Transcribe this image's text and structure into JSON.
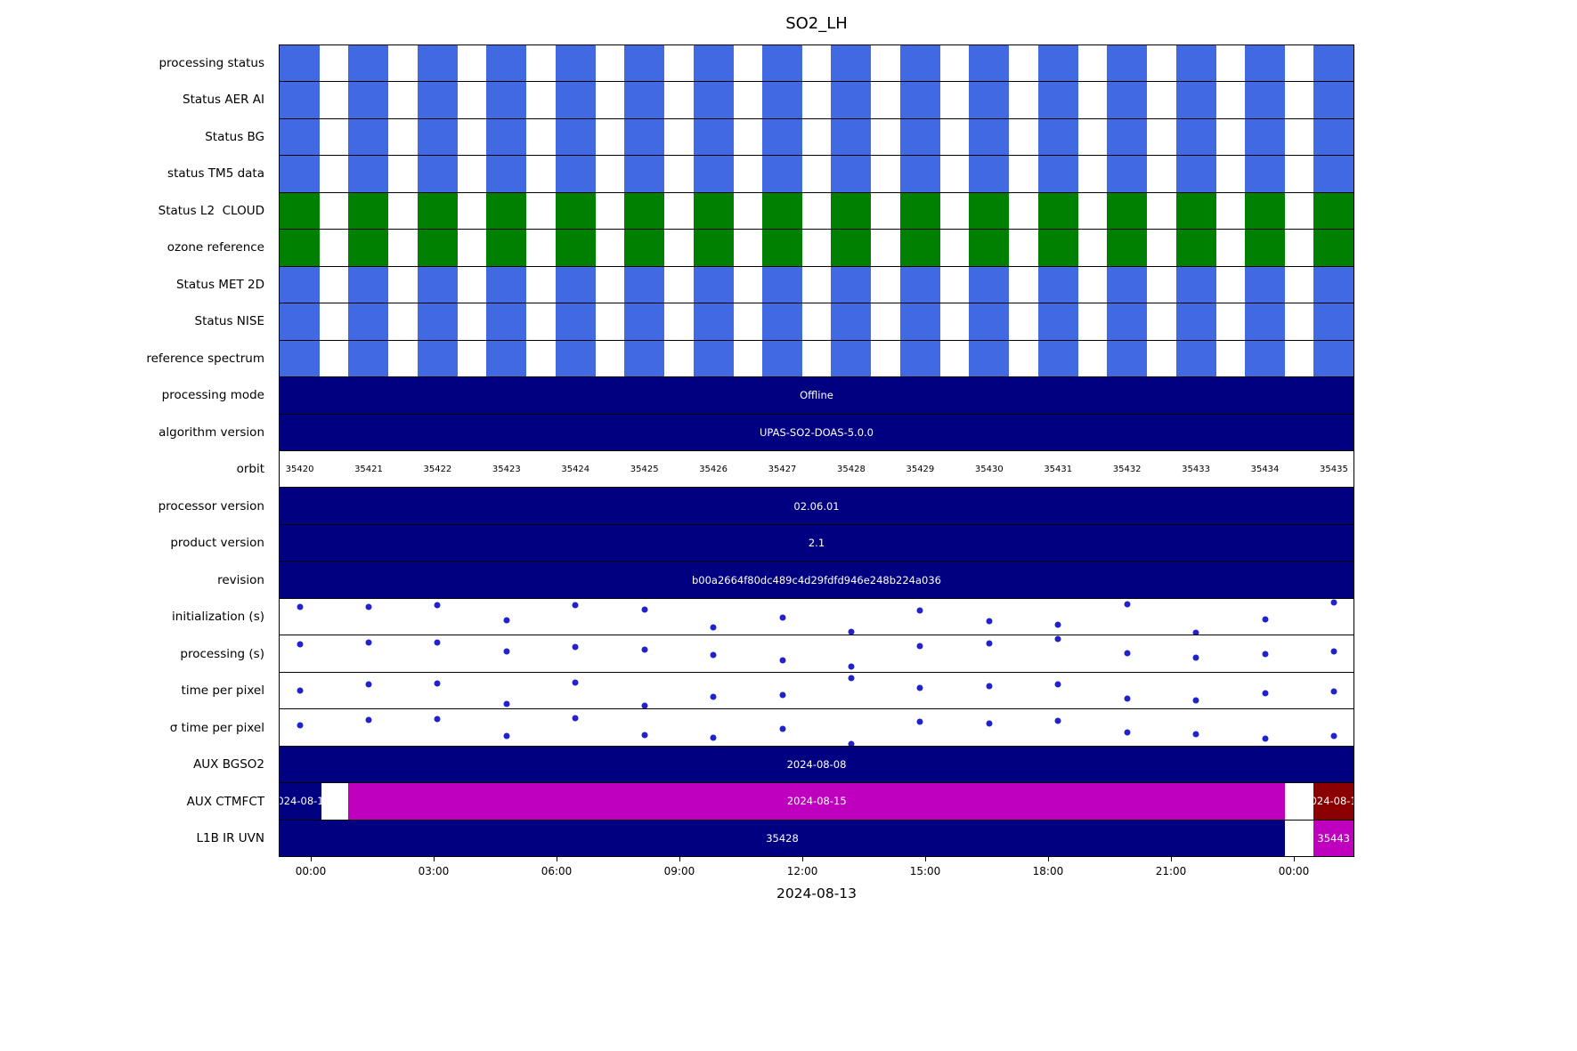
{
  "title": "SO2_LH",
  "xlabel": "2024-08-13",
  "chart_data": {
    "type": "table",
    "title": "SO2_LH",
    "xlabel": "2024-08-13",
    "colors": {
      "blue": "#4169E1",
      "green": "#008000",
      "navy": "#000080",
      "magenta": "#BF00BF",
      "darkred": "#8B0000",
      "dot": "#2222CC",
      "bar_text": "#FFFFFF"
    },
    "block_width": 0.0373,
    "block_centers": [
      0.0187,
      0.0829,
      0.1471,
      0.2113,
      0.2755,
      0.3397,
      0.4039,
      0.4681,
      0.5323,
      0.5965,
      0.6607,
      0.7249,
      0.7891,
      0.8533,
      0.9175,
      0.9817
    ],
    "x_ticks": [
      {
        "label": "00:00",
        "f": 0.0298
      },
      {
        "label": "03:00",
        "f": 0.144
      },
      {
        "label": "06:00",
        "f": 0.2583
      },
      {
        "label": "09:00",
        "f": 0.3725
      },
      {
        "label": "12:00",
        "f": 0.4868
      },
      {
        "label": "15:00",
        "f": 0.601
      },
      {
        "label": "18:00",
        "f": 0.7152
      },
      {
        "label": "21:00",
        "f": 0.8295
      },
      {
        "label": "00:00",
        "f": 0.9437
      }
    ],
    "rows": [
      {
        "type": "blocks",
        "label": "processing status",
        "color": "blue"
      },
      {
        "type": "blocks",
        "label": "Status AER AI",
        "color": "blue"
      },
      {
        "type": "blocks",
        "label": "Status BG",
        "color": "blue"
      },
      {
        "type": "blocks",
        "label": "status TM5 data",
        "color": "blue"
      },
      {
        "type": "blocks",
        "label": "Status L2  CLOUD",
        "color": "green"
      },
      {
        "type": "blocks",
        "label": "ozone reference",
        "color": "green"
      },
      {
        "type": "blocks",
        "label": "Status MET 2D",
        "color": "blue"
      },
      {
        "type": "blocks",
        "label": "Status NISE",
        "color": "blue"
      },
      {
        "type": "blocks",
        "label": "reference spectrum",
        "color": "blue"
      },
      {
        "type": "bar",
        "label": "processing mode",
        "segments": [
          {
            "from": 0,
            "to": 1,
            "color": "navy",
            "text": "Offline"
          }
        ]
      },
      {
        "type": "bar",
        "label": "algorithm version",
        "segments": [
          {
            "from": 0,
            "to": 1,
            "color": "navy",
            "text": "UPAS-SO2-DOAS-5.0.0"
          }
        ]
      },
      {
        "type": "orbit",
        "label": "orbit",
        "labels": [
          "35420",
          "35421",
          "35422",
          "35423",
          "35424",
          "35425",
          "35426",
          "35427",
          "35428",
          "35429",
          "35430",
          "35431",
          "35432",
          "35433",
          "35434",
          "35435"
        ]
      },
      {
        "type": "bar",
        "label": "processor version",
        "segments": [
          {
            "from": 0,
            "to": 1,
            "color": "navy",
            "text": "02.06.01"
          }
        ]
      },
      {
        "type": "bar",
        "label": "product version",
        "segments": [
          {
            "from": 0,
            "to": 1,
            "color": "navy",
            "text": "2.1"
          }
        ]
      },
      {
        "type": "bar",
        "label": "revision",
        "segments": [
          {
            "from": 0,
            "to": 1,
            "color": "navy",
            "text": "b00a2664f80dc489c4d29fdfd946e248b224a036"
          }
        ]
      },
      {
        "type": "scatter",
        "label": "initialization (s)",
        "x": [
          0.0187,
          0.0829,
          0.1471,
          0.2113,
          0.2755,
          0.3397,
          0.4039,
          0.4681,
          0.5323,
          0.5965,
          0.6607,
          0.7249,
          0.7891,
          0.8533,
          0.9175,
          0.9817
        ],
        "y": [
          0.22,
          0.22,
          0.18,
          0.6,
          0.18,
          0.3,
          0.8,
          0.52,
          0.93,
          0.32,
          0.62,
          0.72,
          0.15,
          0.95,
          0.58,
          0.1
        ]
      },
      {
        "type": "scatter",
        "label": "processing (s)",
        "x": [
          0.0187,
          0.0829,
          0.1471,
          0.2113,
          0.2755,
          0.3397,
          0.4039,
          0.4681,
          0.5323,
          0.5965,
          0.6607,
          0.7249,
          0.7891,
          0.8533,
          0.9175,
          0.9817
        ],
        "y": [
          0.25,
          0.18,
          0.2,
          0.45,
          0.32,
          0.38,
          0.55,
          0.68,
          0.85,
          0.3,
          0.22,
          0.1,
          0.48,
          0.62,
          0.52,
          0.45
        ]
      },
      {
        "type": "scatter",
        "label": "time per pixel",
        "x": [
          0.0187,
          0.0829,
          0.1471,
          0.2113,
          0.2755,
          0.3397,
          0.4039,
          0.4681,
          0.5323,
          0.5965,
          0.6607,
          0.7249,
          0.7891,
          0.8533,
          0.9175,
          0.9817
        ],
        "y": [
          0.5,
          0.32,
          0.3,
          0.88,
          0.28,
          0.92,
          0.68,
          0.62,
          0.15,
          0.42,
          0.38,
          0.32,
          0.72,
          0.78,
          0.58,
          0.52
        ]
      },
      {
        "type": "scatter",
        "label": "σ time per pixel",
        "x": [
          0.0187,
          0.0829,
          0.1471,
          0.2113,
          0.2755,
          0.3397,
          0.4039,
          0.4681,
          0.5323,
          0.5965,
          0.6607,
          0.7249,
          0.7891,
          0.8533,
          0.9175,
          0.9817
        ],
        "y": [
          0.45,
          0.3,
          0.28,
          0.75,
          0.25,
          0.72,
          0.78,
          0.55,
          0.97,
          0.35,
          0.4,
          0.32,
          0.65,
          0.7,
          0.82,
          0.75
        ]
      },
      {
        "type": "bar",
        "label": "AUX BGSO2",
        "segments": [
          {
            "from": 0,
            "to": 1,
            "color": "navy",
            "text": "2024-08-08"
          }
        ]
      },
      {
        "type": "bar",
        "label": "AUX CTMFCT",
        "segments": [
          {
            "from": 0,
            "to": 0.039,
            "color": "navy",
            "text": "024-08-1"
          },
          {
            "from": 0.0642,
            "to": 0.9362,
            "color": "magenta",
            "text": "2024-08-15"
          },
          {
            "from": 0.963,
            "to": 1,
            "color": "darkred",
            "text": "024-08-1"
          }
        ]
      },
      {
        "type": "bar",
        "label": "L1B IR UVN",
        "segments": [
          {
            "from": 0,
            "to": 0.9362,
            "color": "navy",
            "text": "35428"
          },
          {
            "from": 0.963,
            "to": 1,
            "color": "magenta",
            "text": "35443"
          }
        ]
      }
    ]
  }
}
